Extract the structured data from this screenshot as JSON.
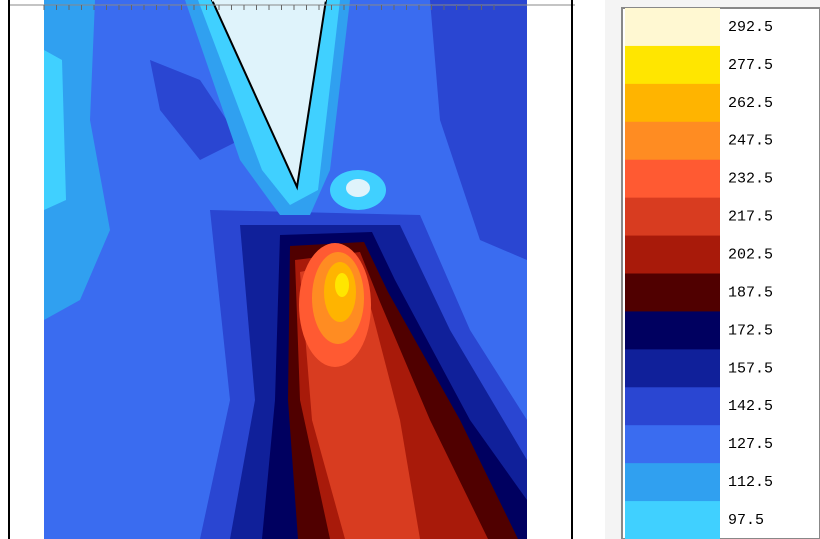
{
  "chart_data": {
    "type": "contour",
    "levels": [
      292.5,
      277.5,
      262.5,
      247.5,
      232.5,
      217.5,
      202.5,
      187.5,
      172.5,
      157.5,
      142.5,
      127.5,
      112.5,
      97.5
    ],
    "colors": [
      "#fff8d2",
      "#ffe600",
      "#ffb400",
      "#ff8c22",
      "#ff5a32",
      "#d83c20",
      "#a81a0a",
      "#500000",
      "#000060",
      "#10209a",
      "#2a46d2",
      "#3a6cf0",
      "#30a0f0",
      "#40d0ff"
    ]
  }
}
